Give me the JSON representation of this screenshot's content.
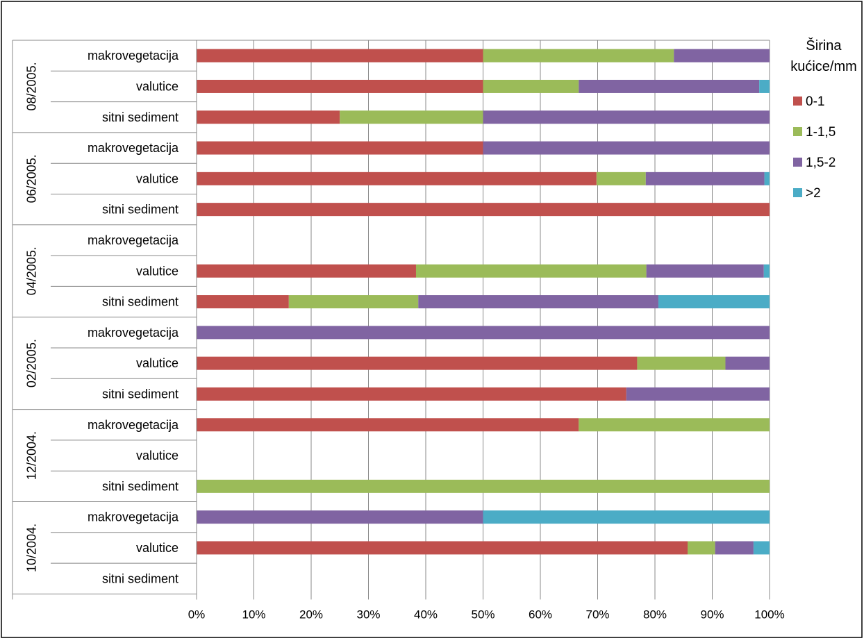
{
  "chart_data": {
    "type": "bar",
    "orientation": "horizontal",
    "stacked": "percent",
    "title": "",
    "xlabel": "",
    "ylabel": "",
    "xlim": [
      0,
      100
    ],
    "x_ticks": [
      "0%",
      "10%",
      "20%",
      "30%",
      "40%",
      "50%",
      "60%",
      "70%",
      "80%",
      "90%",
      "100%"
    ],
    "grid": "vertical",
    "legend_position": "right",
    "legend_title": "Širina kućice/mm",
    "legend_title_lines": [
      "Širina",
      "kućice/mm"
    ],
    "groups": [
      {
        "label": "08/2005.",
        "categories": [
          "makrovegetacija",
          "valutice",
          "sitni sediment"
        ]
      },
      {
        "label": "06/2005.",
        "categories": [
          "makrovegetacija",
          "valutice",
          "sitni sediment"
        ]
      },
      {
        "label": "04/2005.",
        "categories": [
          "makrovegetacija",
          "valutice",
          "sitni sediment"
        ]
      },
      {
        "label": "02/2005.",
        "categories": [
          "makrovegetacija",
          "valutice",
          "sitni sediment"
        ]
      },
      {
        "label": "12/2004.",
        "categories": [
          "makrovegetacija",
          "valutice",
          "sitni sediment"
        ]
      },
      {
        "label": "10/2004.",
        "categories": [
          "makrovegetacija",
          "valutice",
          "sitni sediment"
        ]
      }
    ],
    "series": [
      {
        "name": "0-1",
        "color": "#c0504d",
        "values": [
          50,
          50,
          25,
          50,
          69.8,
          100,
          0,
          38.3,
          16.1,
          0,
          76.9,
          75,
          66.7,
          0,
          0,
          0,
          85.7,
          0
        ]
      },
      {
        "name": "1-1,5",
        "color": "#9bbb59",
        "values": [
          33.3,
          16.7,
          25,
          0,
          8.6,
          0,
          0,
          40.2,
          22.6,
          0,
          15.4,
          0,
          33.3,
          0,
          100,
          0,
          4.8,
          0
        ]
      },
      {
        "name": "1,5-2",
        "color": "#8064a2",
        "values": [
          16.7,
          31.5,
          50,
          50,
          20.7,
          0,
          0,
          20.5,
          41.9,
          100,
          7.7,
          25,
          0,
          0,
          0,
          50,
          6.7,
          0
        ]
      },
      {
        "name": ">2",
        "color": "#4bacc6",
        "values": [
          0,
          1.8,
          0,
          0,
          0.9,
          0,
          0,
          1.0,
          19.4,
          0,
          0,
          0,
          0,
          0,
          0,
          50,
          2.8,
          0
        ]
      }
    ]
  }
}
